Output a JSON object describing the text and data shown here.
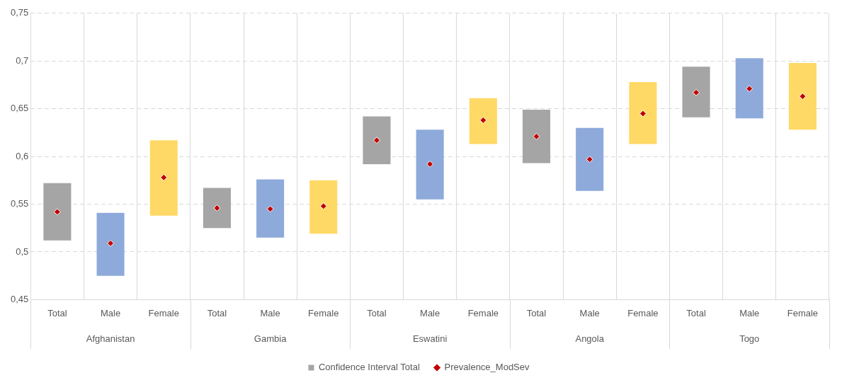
{
  "chart_data": {
    "type": "bar",
    "categories": [
      "Total",
      "Male",
      "Female",
      "Total",
      "Male",
      "Female",
      "Total",
      "Male",
      "Female",
      "Total",
      "Male",
      "Female",
      "Total",
      "Male",
      "Female"
    ],
    "series": [
      {
        "name": "Confidence Interval Total",
        "colors": [
          "#a5a5a5",
          "#8eaadb",
          "#ffd966",
          "#a5a5a5",
          "#8eaadb",
          "#ffd966",
          "#a5a5a5",
          "#8eaadb",
          "#ffd966",
          "#a5a5a5",
          "#8eaadb",
          "#ffd966",
          "#a5a5a5",
          "#8eaadb",
          "#ffd966"
        ],
        "base": [
          0.512,
          0.475,
          0.538,
          0.525,
          0.515,
          0.519,
          0.592,
          0.555,
          0.613,
          0.593,
          0.564,
          0.613,
          0.641,
          0.64,
          0.628
        ],
        "values": [
          0.06,
          0.066,
          0.079,
          0.042,
          0.061,
          0.056,
          0.05,
          0.073,
          0.048,
          0.056,
          0.066,
          0.065,
          0.053,
          0.063,
          0.07
        ]
      },
      {
        "name": "Prevalence_ModSev",
        "type": "scatter",
        "color": "#c00000",
        "marker": "diamond",
        "values": [
          0.542,
          0.509,
          0.578,
          0.546,
          0.545,
          0.548,
          0.617,
          0.592,
          0.638,
          0.621,
          0.597,
          0.645,
          0.667,
          0.671,
          0.663
        ]
      }
    ],
    "annotations": [
      "Afghanistan",
      "Gambia",
      "Eswatini",
      "Angola",
      "Togo"
    ],
    "ylim": [
      0.45,
      0.75
    ],
    "yticks": [
      {
        "value": 0.45,
        "label": "0,45"
      },
      {
        "value": 0.5,
        "label": "0,5"
      },
      {
        "value": 0.55,
        "label": "0,55"
      },
      {
        "value": 0.6,
        "label": "0,6"
      },
      {
        "value": 0.65,
        "label": "0,65"
      },
      {
        "value": 0.7,
        "label": "0,7"
      },
      {
        "value": 0.75,
        "label": "0,75"
      }
    ],
    "grid": true,
    "line_style": "dashed",
    "legend": "bottom"
  }
}
